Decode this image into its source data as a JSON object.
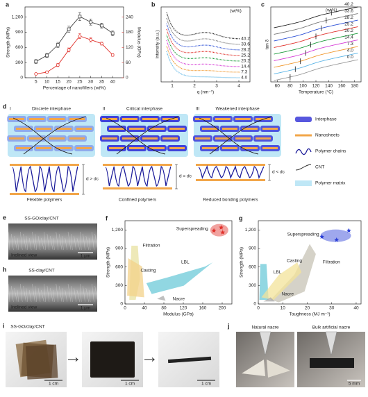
{
  "chart_data": [
    {
      "panel": "a",
      "type": "line",
      "x_label": "Percentage of nanofillers (wt%)",
      "y_label": "Strength (MPa)",
      "y2_label": "Modulus (GPa)",
      "x": [
        5,
        10,
        15,
        20,
        25,
        30,
        35,
        40
      ],
      "xlim": [
        0,
        45
      ],
      "xticks": [
        5,
        10,
        15,
        20,
        25,
        30,
        35,
        40
      ],
      "ylim": [
        0,
        1400
      ],
      "yticks": [
        0,
        300,
        600,
        900,
        {
          "value": 1200,
          "label": "1,200"
        }
      ],
      "y2lim": [
        0,
        280
      ],
      "y2ticks": [
        0,
        60,
        120,
        180,
        240
      ],
      "series": [
        {
          "color": "#444444",
          "marker": "square",
          "values": [
            320,
            440,
            650,
            960,
            1210,
            1100,
            1030,
            880
          ],
          "errors": [
            40,
            40,
            50,
            60,
            80,
            60,
            50,
            50
          ]
        },
        {
          "color": "#e0302a",
          "marker": "circle",
          "axis": "y2",
          "values": [
            15,
            22,
            50,
            110,
            165,
            150,
            135,
            90
          ],
          "errors": [
            3,
            4,
            6,
            8,
            10,
            8,
            6,
            5
          ]
        }
      ]
    },
    {
      "panel": "b",
      "type": "curves",
      "x_label": "q (nm⁻¹)",
      "y_label": "Intensity (a.u.)",
      "legend_title": "(wt%)",
      "xlim": [
        0.5,
        4.5
      ],
      "xticks": [
        1,
        2,
        3,
        4
      ],
      "curves": [
        {
          "name": "40.2",
          "color": "#222222"
        },
        {
          "name": "33.6",
          "color": "#777777"
        },
        {
          "name": "28.2",
          "color": "#2b4fd6"
        },
        {
          "name": "25.2",
          "color": "#e0302a"
        },
        {
          "name": "20.2",
          "color": "#1a9a3a"
        },
        {
          "name": "14.4",
          "color": "#d63ad6"
        },
        {
          "name": "7.3",
          "color": "#f0962a"
        },
        {
          "name": "4.0",
          "color": "#5ab4e6"
        }
      ]
    },
    {
      "panel": "c",
      "type": "curves",
      "x_label": "Temperature (°C)",
      "y_label": "tan δ",
      "legend_title": "(wt%)",
      "xlim": [
        50,
        190
      ],
      "xticks": [
        60,
        80,
        100,
        120,
        140,
        160,
        180
      ],
      "curves": [
        {
          "name": "40.2",
          "color": "#222222"
        },
        {
          "name": "33.6",
          "color": "#777777"
        },
        {
          "name": "28.2",
          "color": "#2b4fd6"
        },
        {
          "name": "25.2",
          "color": "#e0302a"
        },
        {
          "name": "20.2",
          "color": "#1a9a3a"
        },
        {
          "name": "14.4",
          "color": "#d63ad6"
        },
        {
          "name": "7.3",
          "color": "#f0962a"
        },
        {
          "name": "4.0",
          "color": "#5ab4e6"
        },
        {
          "name": "0.0",
          "color": "#999999"
        }
      ]
    },
    {
      "panel": "f",
      "type": "scatter",
      "x_label": "Modulus (GPa)",
      "y_label": "Strength (MPa)",
      "xlim": [
        0,
        220
      ],
      "xticks": [
        0,
        40,
        80,
        120,
        160,
        200
      ],
      "ylim": [
        0,
        1350
      ],
      "yticks": [
        0,
        300,
        600,
        900,
        {
          "value": 1200,
          "label": "1,200"
        }
      ],
      "series": [
        {
          "name": "Superspreading",
          "color": "#e0302a",
          "x": [
            183,
            198,
            201
          ],
          "values": [
            1190,
            1240,
            1160
          ]
        }
      ],
      "region_labels": [
        "Filtration",
        "LBL",
        "Casting",
        "Nacre"
      ]
    },
    {
      "panel": "g",
      "type": "scatter",
      "x_label": "Toughness (MJ m⁻³)",
      "y_label": "Strength (MPa)",
      "xlim": [
        0,
        42
      ],
      "xticks": [
        0,
        10,
        20,
        30,
        40
      ],
      "ylim": [
        0,
        1350
      ],
      "yticks": [
        0,
        300,
        600,
        900,
        {
          "value": 1200,
          "label": "1,200"
        }
      ],
      "series": [
        {
          "name": "Superspreading",
          "color": "#2b3fd6",
          "x": [
            26,
            37,
            32
          ],
          "values": [
            1090,
            1190,
            1040
          ]
        }
      ],
      "region_labels": [
        "Filtration",
        "LBL",
        "Casting",
        "Nacre"
      ]
    }
  ],
  "schematic": {
    "panel": "d",
    "stages": [
      {
        "numeral": "I",
        "title": "Discrete interphase",
        "relation": "d > dc",
        "caption": "Flexible polymers"
      },
      {
        "numeral": "II",
        "title": "Critical interphase",
        "relation": "d = dc",
        "caption": "Confined polymers"
      },
      {
        "numeral": "III",
        "title": "Weakened interphase",
        "relation": "d < dc",
        "caption": "Reduced bonding polymers"
      }
    ],
    "legend": [
      "Interphase",
      "Nanosheets",
      "Polymer chains",
      "CNT",
      "Polymer matrix"
    ]
  },
  "images": {
    "e": {
      "panel": "e",
      "title": "SS-GO/clay/CNT",
      "view": "Inclined view",
      "scale": "1 μm"
    },
    "h": {
      "panel": "h",
      "title": "SS-clay/CNT",
      "view": "Inclined view",
      "scale": "1 μm"
    },
    "i": {
      "panel": "i",
      "title": "SS-GO/clay/CNT",
      "scales": [
        "1 cm",
        "1 cm",
        "1 cm"
      ]
    },
    "j": {
      "panel": "j",
      "captions": [
        "Natural nacre",
        "Bulk artificial nacre"
      ],
      "scale": "5 mm"
    }
  }
}
